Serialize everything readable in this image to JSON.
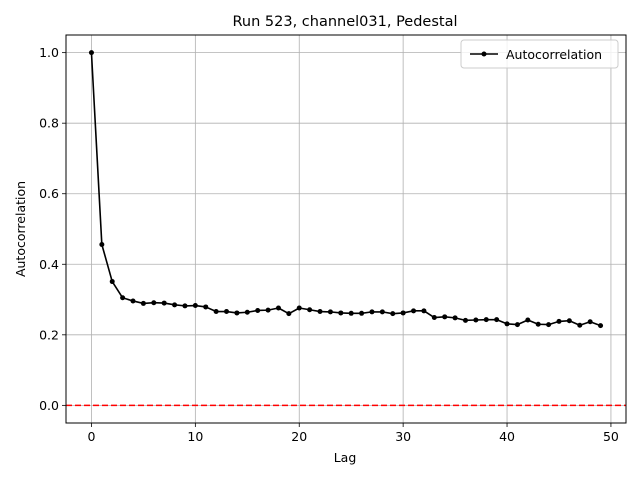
{
  "chart_data": {
    "type": "line",
    "title": "Run 523, channel031, Pedestal",
    "xlabel": "Lag",
    "ylabel": "Autocorrelation",
    "xlim": [
      -2.45,
      51.45
    ],
    "ylim": [
      -0.05,
      1.05
    ],
    "xticks": [
      0,
      10,
      20,
      30,
      40,
      50
    ],
    "yticks": [
      0.0,
      0.2,
      0.4,
      0.6,
      0.8,
      1.0
    ],
    "xtick_labels": [
      "0",
      "10",
      "20",
      "30",
      "40",
      "50"
    ],
    "ytick_labels": [
      "0.0",
      "0.2",
      "0.4",
      "0.6",
      "0.8",
      "1.0"
    ],
    "grid": true,
    "legend_position": "upper right",
    "series": [
      {
        "name": "Autocorrelation",
        "color": "#000000",
        "marker": "circle",
        "x": [
          0,
          1,
          2,
          3,
          4,
          5,
          6,
          7,
          8,
          9,
          10,
          11,
          12,
          13,
          14,
          15,
          16,
          17,
          18,
          19,
          20,
          21,
          22,
          23,
          24,
          25,
          26,
          27,
          28,
          29,
          30,
          31,
          32,
          33,
          34,
          35,
          36,
          37,
          38,
          39,
          40,
          41,
          42,
          43,
          44,
          45,
          46,
          47,
          48,
          49
        ],
        "values": [
          1.0,
          0.456,
          0.351,
          0.305,
          0.296,
          0.289,
          0.291,
          0.29,
          0.285,
          0.282,
          0.283,
          0.279,
          0.266,
          0.266,
          0.262,
          0.264,
          0.269,
          0.27,
          0.276,
          0.26,
          0.276,
          0.271,
          0.266,
          0.265,
          0.262,
          0.261,
          0.261,
          0.265,
          0.265,
          0.26,
          0.262,
          0.268,
          0.268,
          0.249,
          0.251,
          0.248,
          0.241,
          0.242,
          0.243,
          0.243,
          0.231,
          0.229,
          0.242,
          0.23,
          0.229,
          0.238,
          0.24,
          0.227,
          0.237,
          0.226
        ]
      }
    ],
    "reference_line": {
      "y": 0.0,
      "color": "#ff0000",
      "style": "dashed"
    }
  }
}
